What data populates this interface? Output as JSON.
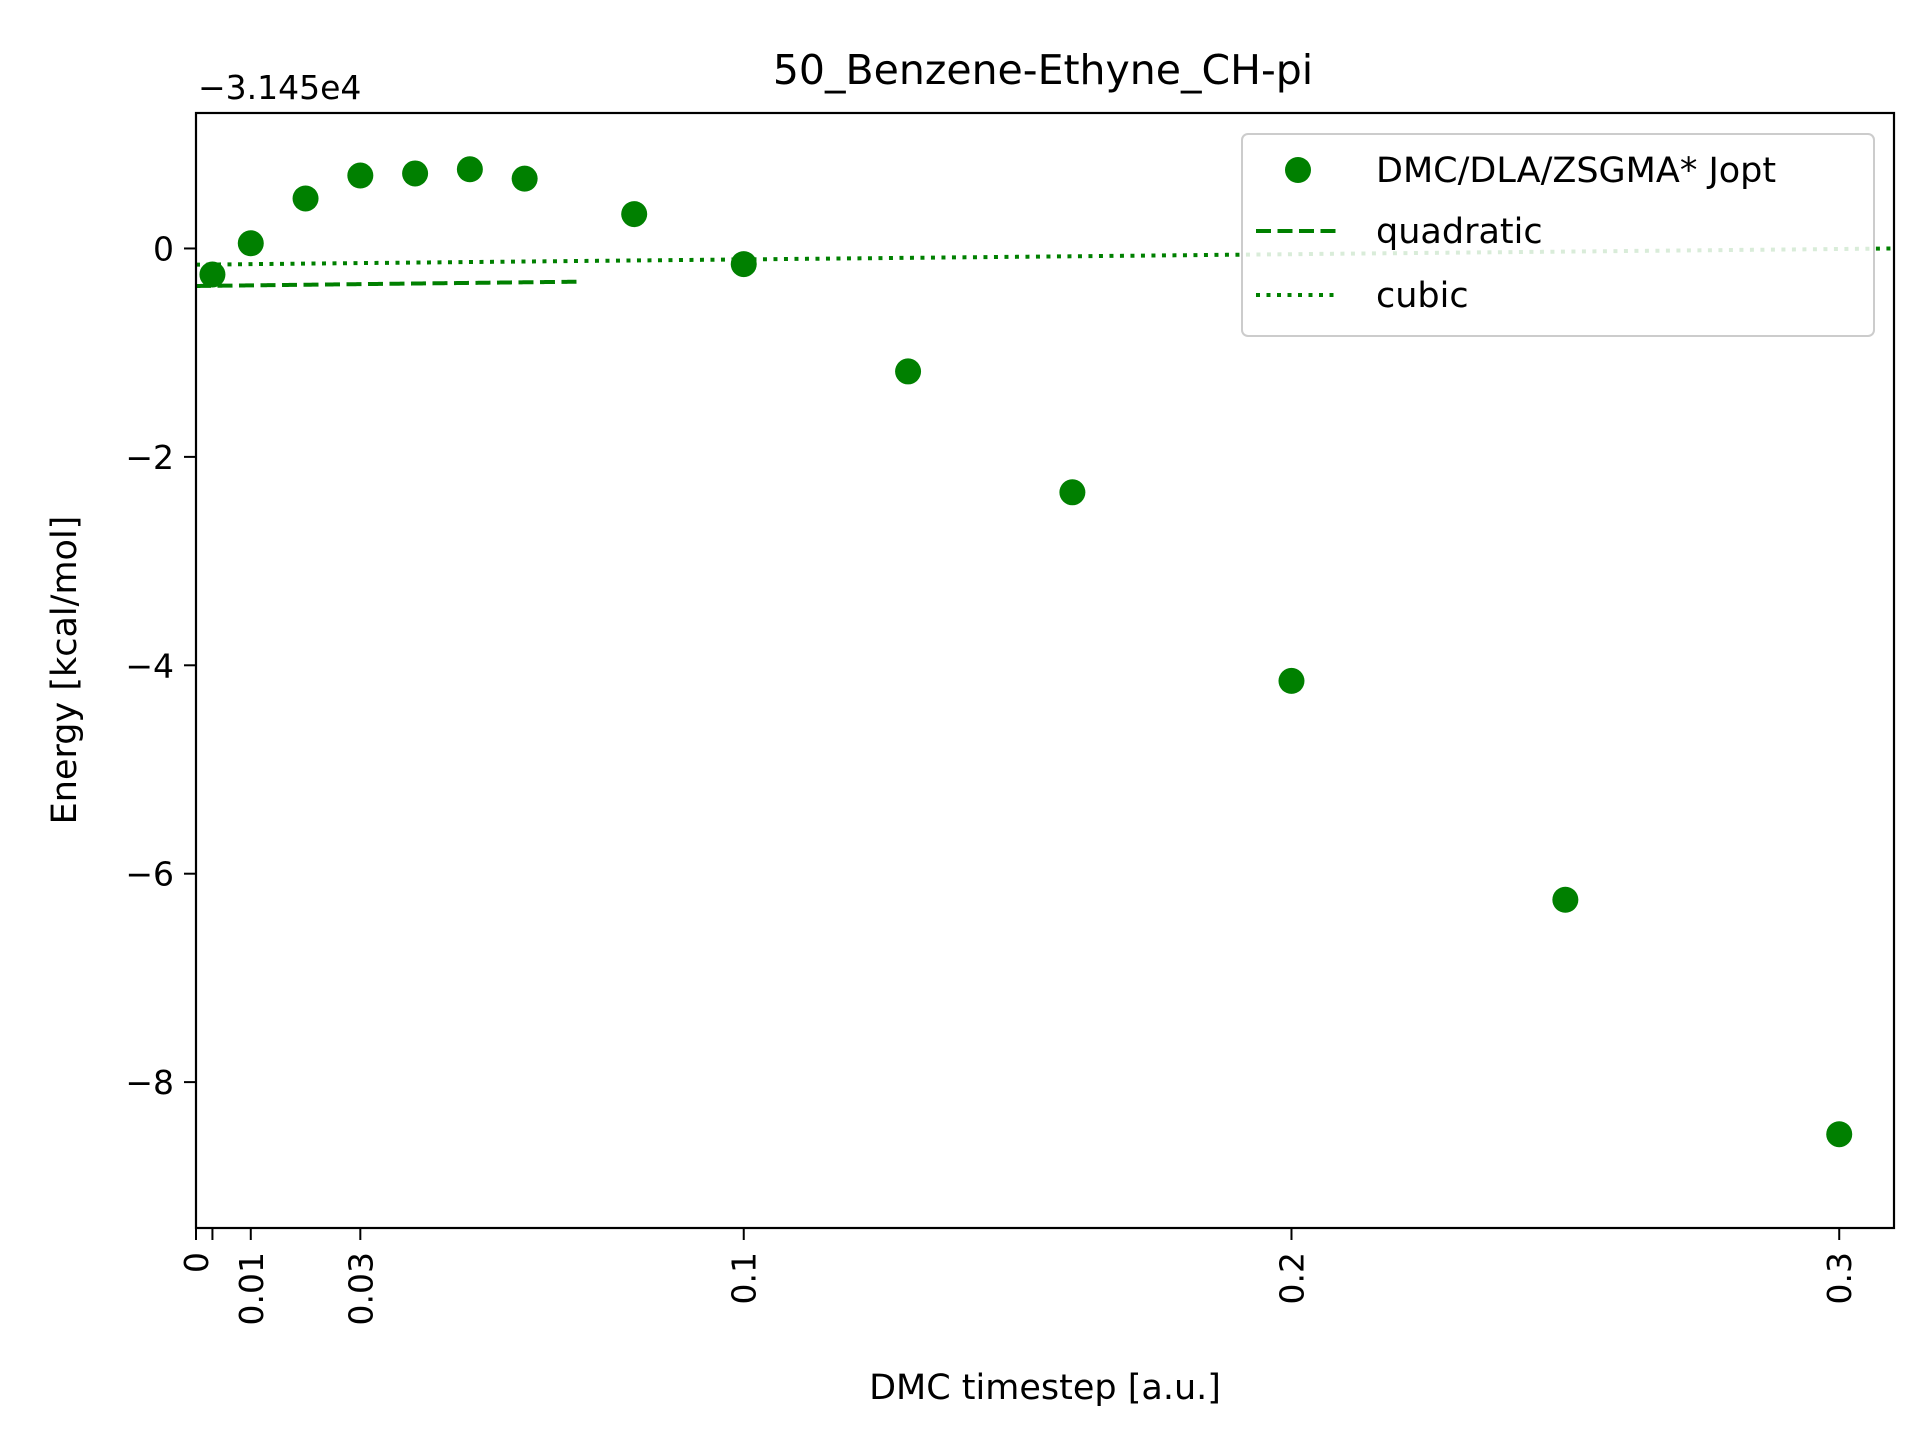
{
  "chart_data": {
    "type": "scatter",
    "title": "50_Benzene-Ethyne_CH-pi",
    "offset_label": "−3.145e4",
    "xlabel": "DMC timestep [a.u.]",
    "ylabel": "Energy [kcal/mol]",
    "xlim": [
      0,
      0.31
    ],
    "ylim": [
      -9.4,
      1.3
    ],
    "xticks": [
      {
        "value": 0,
        "label": "0"
      },
      {
        "value": 0.003,
        "label": ""
      },
      {
        "value": 0.01,
        "label": "0.01"
      },
      {
        "value": 0.03,
        "label": "0.03"
      },
      {
        "value": 0.1,
        "label": "0.1"
      },
      {
        "value": 0.2,
        "label": "0.2"
      },
      {
        "value": 0.3,
        "label": "0.3"
      }
    ],
    "yticks": [
      {
        "value": 0,
        "label": "0"
      },
      {
        "value": -2,
        "label": "−2"
      },
      {
        "value": -4,
        "label": "−4"
      },
      {
        "value": -6,
        "label": "−6"
      },
      {
        "value": -8,
        "label": "−8"
      }
    ],
    "grid": false,
    "legend_position": "top-right",
    "color": "#008000",
    "series": [
      {
        "name": "DMC/DLA/ZSGMA* Jopt",
        "style": "markers",
        "x": [
          0.003,
          0.01,
          0.02,
          0.03,
          0.04,
          0.05,
          0.06,
          0.08,
          0.1,
          0.13,
          0.16,
          0.2,
          0.25,
          0.3
        ],
        "y": [
          -0.25,
          0.05,
          0.48,
          0.7,
          0.72,
          0.76,
          0.67,
          0.33,
          -0.15,
          -1.18,
          -2.34,
          -4.15,
          -6.25,
          -8.5
        ]
      },
      {
        "name": "quadratic",
        "style": "dashed",
        "coefficients": [
          -0.36,
          0.5912,
          -0.01062
        ],
        "xrange": [
          0,
          0.07
        ]
      },
      {
        "name": "cubic",
        "style": "dotted",
        "coefficients": [
          -0.1554,
          0.5043,
          -0.0101,
          5.66e-05
        ],
        "xrange": [
          0,
          0.31
        ]
      }
    ]
  }
}
